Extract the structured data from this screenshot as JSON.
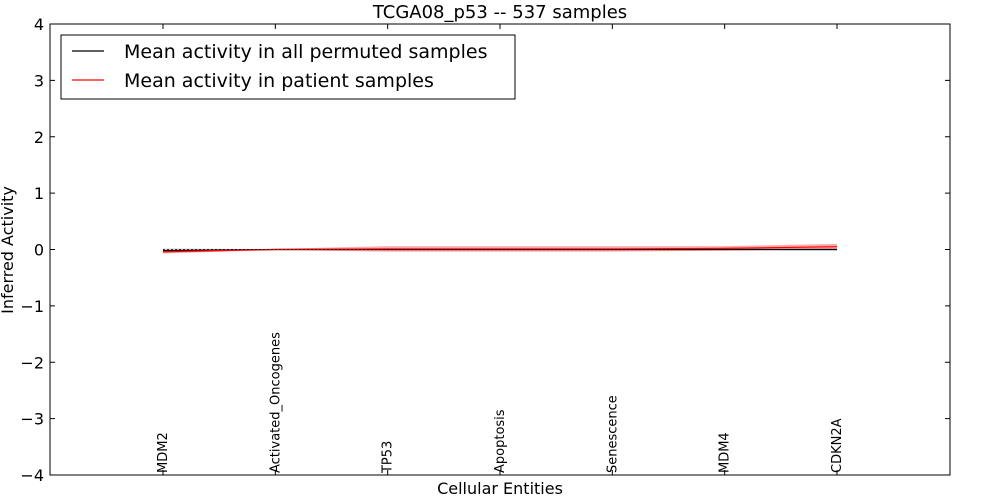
{
  "chart_data": {
    "type": "line",
    "title": "TCGA08_p53 -- 537 samples",
    "xlabel": "Cellular Entities",
    "ylabel": "Inferred Activity",
    "ylim": [
      -4,
      4
    ],
    "yticks": [
      -4,
      -3,
      -2,
      -1,
      0,
      1,
      2,
      3,
      4
    ],
    "ytick_labels": [
      "−4",
      "−3",
      "−2",
      "−1",
      "0",
      "1",
      "2",
      "3",
      "4"
    ],
    "categories": [
      "MDM2",
      "Activated_Oncogenes",
      "TP53",
      "Apoptosis",
      "Senescence",
      "MDM4",
      "CDKN2A"
    ],
    "legend_position": "top-left",
    "series": [
      {
        "name": "Mean activity in all permuted samples",
        "color": "#000000",
        "band_color": "#bbbbbb",
        "values": [
          -0.02,
          0.0,
          0.0,
          0.0,
          0.0,
          0.0,
          0.0
        ],
        "lower": [
          -0.06,
          -0.01,
          -0.02,
          -0.02,
          -0.02,
          -0.02,
          -0.02
        ],
        "upper": [
          0.02,
          0.01,
          0.02,
          0.02,
          0.02,
          0.02,
          0.02
        ]
      },
      {
        "name": "Mean activity in patient samples",
        "color": "#ff0000",
        "band_color": "#ff6666",
        "values": [
          -0.04,
          0.0,
          0.01,
          0.01,
          0.01,
          0.02,
          0.05
        ],
        "lower": [
          -0.07,
          -0.01,
          -0.04,
          -0.04,
          -0.04,
          -0.02,
          0.01
        ],
        "upper": [
          -0.01,
          0.01,
          0.06,
          0.06,
          0.06,
          0.06,
          0.1
        ]
      }
    ]
  }
}
